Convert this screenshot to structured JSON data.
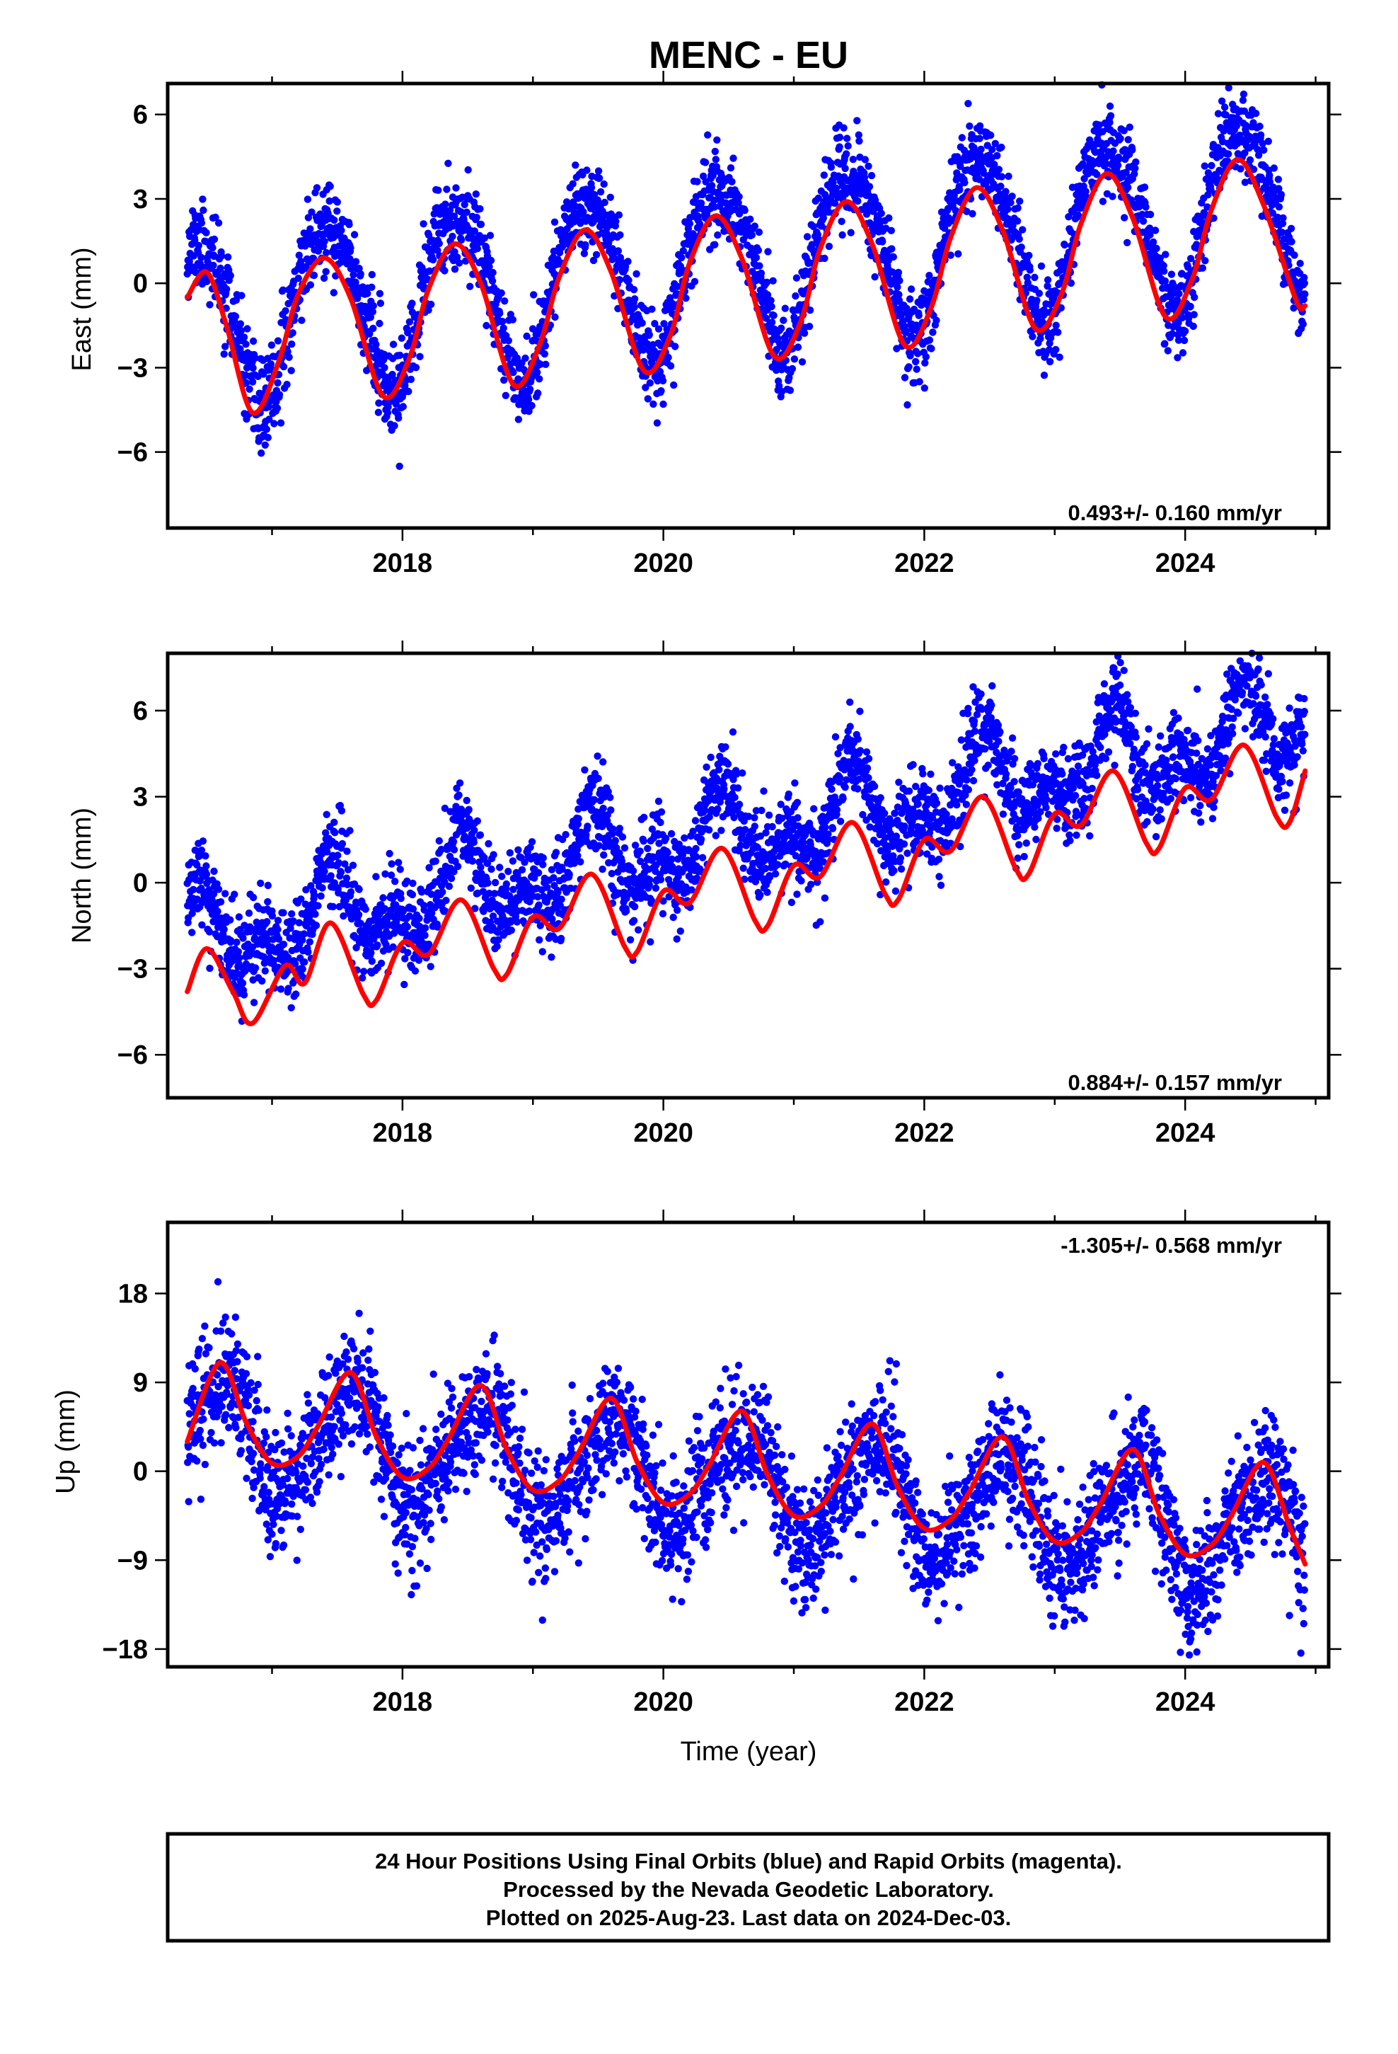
{
  "title": "MENC - EU",
  "xlabel": "Time (year)",
  "footer": {
    "line1": "24 Hour Positions Using Final Orbits (blue) and Rapid Orbits (magenta).",
    "line2": "Processed by the Nevada Geodetic Laboratory.",
    "line3": "Plotted on 2025-Aug-23. Last data on 2024-Dec-03."
  },
  "colors": {
    "points": "#0000ff",
    "fit": "#ff0000",
    "frame": "#000000"
  },
  "chart_data": [
    {
      "type": "scatter",
      "ylabel": "East (mm)",
      "rate_label": "0.493+/- 0.160 mm/yr",
      "rate_position": "bottom-right",
      "xlim": [
        2016.2,
        2025.1
      ],
      "ylim": [
        -8.7,
        7.1
      ],
      "yticks": [
        6,
        3,
        0,
        -3,
        -6
      ],
      "xticks": [
        2018,
        2020,
        2022,
        2024
      ],
      "data_start": 2016.35,
      "data_end": 2024.92,
      "series": [
        {
          "kind": "daily-positions",
          "model": {
            "offset": -1.35,
            "trend": 0.493,
            "annual_amp": 3.0,
            "annual_peak": 0.42,
            "semiannual_amp": 0.4,
            "semiannual_peak": 0.2,
            "scatter_sd": 0.8
          }
        },
        {
          "kind": "fitted-model",
          "x": [
            2016.35,
            2016.5,
            2016.65,
            2016.85,
            2017.05,
            2017.2,
            2017.4,
            2017.6,
            2017.85,
            2018.05,
            2018.2,
            2018.4,
            2018.6,
            2018.85,
            2019.05,
            2019.2,
            2019.4,
            2019.6,
            2019.85,
            2020.05,
            2020.2,
            2020.4,
            2020.6,
            2020.85,
            2021.05,
            2021.2,
            2021.4,
            2021.6,
            2021.85,
            2022.05,
            2022.2,
            2022.4,
            2022.6,
            2022.85,
            2023.05,
            2023.2,
            2023.4,
            2023.6,
            2023.85,
            2024.05,
            2024.2,
            2024.4,
            2024.6,
            2024.85,
            2024.92
          ],
          "y": [
            -0.5,
            0.4,
            -1.5,
            -4.6,
            -2.8,
            -0.4,
            0.9,
            -0.5,
            -4.0,
            -2.7,
            -0.2,
            1.4,
            0.0,
            -3.6,
            -2.2,
            0.2,
            1.9,
            0.4,
            -3.1,
            -1.9,
            0.7,
            2.4,
            0.9,
            -2.6,
            -1.4,
            1.2,
            2.9,
            1.4,
            -2.2,
            -0.9,
            1.6,
            3.4,
            1.9,
            -1.6,
            -0.4,
            2.1,
            3.9,
            2.3,
            -1.2,
            0.1,
            2.6,
            4.4,
            2.8,
            -0.6,
            -0.8
          ]
        }
      ]
    },
    {
      "type": "scatter",
      "ylabel": "North (mm)",
      "rate_label": "0.884+/- 0.157 mm/yr",
      "rate_position": "bottom-right",
      "xlim": [
        2016.2,
        2025.1
      ],
      "ylim": [
        -7.5,
        8.0
      ],
      "yticks": [
        6,
        3,
        0,
        -3,
        -6
      ],
      "xticks": [
        2018,
        2020,
        2022,
        2024
      ],
      "data_start": 2016.35,
      "data_end": 2024.92,
      "series": [
        {
          "kind": "daily-positions",
          "model": {
            "offset": -2.1,
            "trend": 0.884,
            "annual_amp": 1.2,
            "annual_peak": 0.45,
            "semiannual_amp": 0.9,
            "semiannual_peak": 0.45,
            "scatter_sd": 0.8
          }
        },
        {
          "kind": "fitted-model",
          "x": [
            2016.35,
            2016.5,
            2016.7,
            2016.85,
            2017.1,
            2017.25,
            2017.45,
            2017.7,
            2017.8,
            2018.0,
            2018.2,
            2018.45,
            2018.7,
            2018.8,
            2019.0,
            2019.2,
            2019.45,
            2019.7,
            2019.8,
            2020.0,
            2020.2,
            2020.45,
            2020.7,
            2020.8,
            2021.0,
            2021.2,
            2021.45,
            2021.7,
            2021.8,
            2022.0,
            2022.2,
            2022.45,
            2022.7,
            2022.8,
            2023.0,
            2023.2,
            2023.45,
            2023.7,
            2023.8,
            2024.0,
            2024.2,
            2024.45,
            2024.7,
            2024.8,
            2024.92
          ],
          "y": [
            -3.8,
            -2.3,
            -3.8,
            -4.9,
            -2.9,
            -3.5,
            -1.4,
            -3.9,
            -4.1,
            -2.1,
            -2.5,
            -0.6,
            -3.0,
            -3.2,
            -1.2,
            -1.6,
            0.3,
            -2.2,
            -2.4,
            -0.3,
            -0.7,
            1.2,
            -1.3,
            -1.5,
            0.6,
            0.2,
            2.1,
            -0.4,
            -0.6,
            1.5,
            1.1,
            3.0,
            0.5,
            0.3,
            2.4,
            2.0,
            3.9,
            1.4,
            1.2,
            3.3,
            2.9,
            4.8,
            2.3,
            2.1,
            3.9
          ]
        }
      ]
    },
    {
      "type": "scatter",
      "ylabel": "Up (mm)",
      "rate_label": "-1.305+/- 0.568 mm/yr",
      "rate_position": "top-right",
      "xlim": [
        2016.2,
        2025.1
      ],
      "ylim": [
        -19.8,
        25.2
      ],
      "yticks": [
        18,
        9,
        0,
        -9,
        -18
      ],
      "xticks": [
        2018,
        2020,
        2022,
        2024
      ],
      "data_start": 2016.35,
      "data_end": 2024.92,
      "series": [
        {
          "kind": "daily-positions",
          "model": {
            "offset": 4.3,
            "trend": -1.305,
            "annual_amp": 5.5,
            "annual_peak": 0.6,
            "semiannual_amp": 1.0,
            "semiannual_peak": 0.25,
            "scatter_sd": 3.2
          }
        },
        {
          "kind": "fitted-model",
          "x": [
            2016.35,
            2016.6,
            2016.8,
            2017.0,
            2017.2,
            2017.35,
            2017.6,
            2017.8,
            2018.0,
            2018.2,
            2018.35,
            2018.6,
            2018.8,
            2019.0,
            2019.2,
            2019.35,
            2019.6,
            2019.8,
            2020.0,
            2020.2,
            2020.35,
            2020.6,
            2020.8,
            2021.0,
            2021.2,
            2021.35,
            2021.6,
            2021.8,
            2022.0,
            2022.2,
            2022.35,
            2022.6,
            2022.8,
            2023.0,
            2023.2,
            2023.35,
            2023.6,
            2023.8,
            2024.0,
            2024.2,
            2024.35,
            2024.6,
            2024.8,
            2024.92
          ],
          "y": [
            3.0,
            11.0,
            5.0,
            0.8,
            1.5,
            4.5,
            10.0,
            3.5,
            -0.6,
            0.3,
            3.2,
            8.7,
            2.2,
            -1.9,
            -1.0,
            1.9,
            7.4,
            0.9,
            -3.2,
            -2.3,
            0.6,
            6.1,
            -0.4,
            -4.5,
            -3.6,
            -0.7,
            4.8,
            -1.7,
            -5.8,
            -4.9,
            -2.0,
            3.5,
            -3.0,
            -7.1,
            -6.2,
            -3.3,
            2.2,
            -4.3,
            -8.4,
            -7.5,
            -4.6,
            0.9,
            -5.6,
            -9.4
          ]
        }
      ]
    }
  ]
}
